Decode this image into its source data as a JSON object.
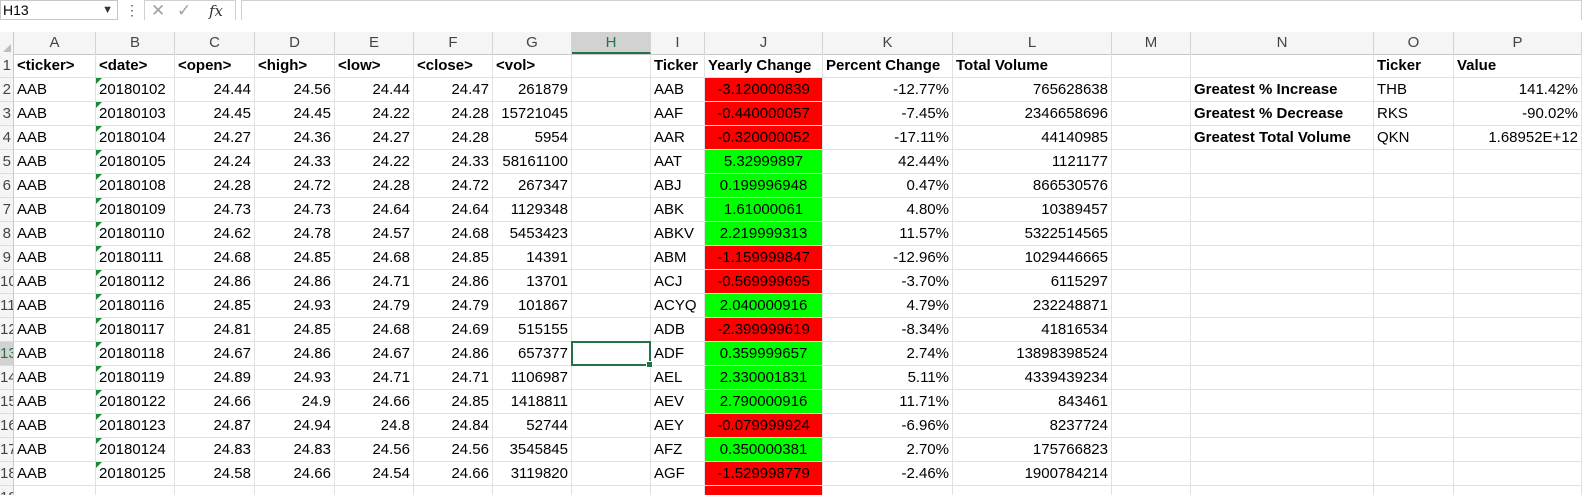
{
  "formula_bar": {
    "name_box": "H13",
    "fx_label": "fx",
    "cancel_glyph": "✕",
    "enter_glyph": "✓",
    "dots_glyph": "⋮",
    "formula": ""
  },
  "columns": [
    "A",
    "B",
    "C",
    "D",
    "E",
    "F",
    "G",
    "H",
    "I",
    "J",
    "K",
    "L",
    "M",
    "N",
    "O",
    "P"
  ],
  "selected_column": "H",
  "row_numbers": [
    "1",
    "2",
    "3",
    "4",
    "5",
    "6",
    "7",
    "8",
    "9",
    "10",
    "11",
    "12",
    "13",
    "14",
    "15",
    "16",
    "17",
    "18",
    "19"
  ],
  "selected_row": "13",
  "colors": {
    "positive_fill": "#00ff00",
    "negative_fill": "#ff0000",
    "selection": "#217346"
  },
  "raw_headers": [
    "<ticker>",
    "<date>",
    "<open>",
    "<high>",
    "<low>",
    "<close>",
    "<vol>"
  ],
  "raw_rows": [
    [
      "AAB",
      "20180102",
      "24.44",
      "24.56",
      "24.44",
      "24.47",
      "261879"
    ],
    [
      "AAB",
      "20180103",
      "24.45",
      "24.45",
      "24.22",
      "24.28",
      "15721045"
    ],
    [
      "AAB",
      "20180104",
      "24.27",
      "24.36",
      "24.27",
      "24.28",
      "5954"
    ],
    [
      "AAB",
      "20180105",
      "24.24",
      "24.33",
      "24.22",
      "24.33",
      "58161100"
    ],
    [
      "AAB",
      "20180108",
      "24.28",
      "24.72",
      "24.28",
      "24.72",
      "267347"
    ],
    [
      "AAB",
      "20180109",
      "24.73",
      "24.73",
      "24.64",
      "24.64",
      "1129348"
    ],
    [
      "AAB",
      "20180110",
      "24.62",
      "24.78",
      "24.57",
      "24.68",
      "5453423"
    ],
    [
      "AAB",
      "20180111",
      "24.68",
      "24.85",
      "24.68",
      "24.85",
      "14391"
    ],
    [
      "AAB",
      "20180112",
      "24.86",
      "24.86",
      "24.71",
      "24.86",
      "13701"
    ],
    [
      "AAB",
      "20180116",
      "24.85",
      "24.93",
      "24.79",
      "24.79",
      "101867"
    ],
    [
      "AAB",
      "20180117",
      "24.81",
      "24.85",
      "24.68",
      "24.69",
      "515155"
    ],
    [
      "AAB",
      "20180118",
      "24.67",
      "24.86",
      "24.67",
      "24.86",
      "657377"
    ],
    [
      "AAB",
      "20180119",
      "24.89",
      "24.93",
      "24.71",
      "24.71",
      "1106987"
    ],
    [
      "AAB",
      "20180122",
      "24.66",
      "24.9",
      "24.66",
      "24.85",
      "1418811"
    ],
    [
      "AAB",
      "20180123",
      "24.87",
      "24.94",
      "24.8",
      "24.84",
      "52744"
    ],
    [
      "AAB",
      "20180124",
      "24.83",
      "24.83",
      "24.56",
      "24.56",
      "3545845"
    ],
    [
      "AAB",
      "20180125",
      "24.58",
      "24.66",
      "24.54",
      "24.66",
      "3119820"
    ]
  ],
  "summary_headers": [
    "Ticker",
    "Yearly Change",
    "Percent Change",
    "Total Volume"
  ],
  "summary_rows": [
    {
      "ticker": "AAB",
      "change": "-3.120000839",
      "pct": "-12.77%",
      "volume": "765628638",
      "positive": false
    },
    {
      "ticker": "AAF",
      "change": "-0.440000057",
      "pct": "-7.45%",
      "volume": "2346658696",
      "positive": false
    },
    {
      "ticker": "AAR",
      "change": "-0.320000052",
      "pct": "-17.11%",
      "volume": "44140985",
      "positive": false
    },
    {
      "ticker": "AAT",
      "change": "5.32999897",
      "pct": "42.44%",
      "volume": "1121177",
      "positive": true
    },
    {
      "ticker": "ABJ",
      "change": "0.199996948",
      "pct": "0.47%",
      "volume": "866530576",
      "positive": true
    },
    {
      "ticker": "ABK",
      "change": "1.61000061",
      "pct": "4.80%",
      "volume": "10389457",
      "positive": true
    },
    {
      "ticker": "ABKV",
      "change": "2.219999313",
      "pct": "11.57%",
      "volume": "5322514565",
      "positive": true
    },
    {
      "ticker": "ABM",
      "change": "-1.159999847",
      "pct": "-12.96%",
      "volume": "1029446665",
      "positive": false
    },
    {
      "ticker": "ACJ",
      "change": "-0.569999695",
      "pct": "-3.70%",
      "volume": "6115297",
      "positive": false
    },
    {
      "ticker": "ACYQ",
      "change": "2.040000916",
      "pct": "4.79%",
      "volume": "232248871",
      "positive": true
    },
    {
      "ticker": "ADB",
      "change": "-2.399999619",
      "pct": "-8.34%",
      "volume": "41816534",
      "positive": false
    },
    {
      "ticker": "ADF",
      "change": "0.359999657",
      "pct": "2.74%",
      "volume": "13898398524",
      "positive": true
    },
    {
      "ticker": "AEL",
      "change": "2.330001831",
      "pct": "5.11%",
      "volume": "4339439234",
      "positive": true
    },
    {
      "ticker": "AEV",
      "change": "2.790000916",
      "pct": "11.71%",
      "volume": "843461",
      "positive": true
    },
    {
      "ticker": "AEY",
      "change": "-0.079999924",
      "pct": "-6.96%",
      "volume": "8237724",
      "positive": false
    },
    {
      "ticker": "AFZ",
      "change": "0.350000381",
      "pct": "2.70%",
      "volume": "175766823",
      "positive": true
    },
    {
      "ticker": "AGF",
      "change": "-1.529998779",
      "pct": "-2.46%",
      "volume": "1900784214",
      "positive": false
    }
  ],
  "greatest_headers": [
    "Ticker",
    "Value"
  ],
  "greatest_rows": [
    {
      "label": "Greatest % Increase",
      "ticker": "THB",
      "value": "141.42%"
    },
    {
      "label": "Greatest % Decrease",
      "ticker": "RKS",
      "value": "-90.02%"
    },
    {
      "label": "Greatest Total Volume",
      "ticker": "QKN",
      "value": "1.68952E+12"
    }
  ]
}
